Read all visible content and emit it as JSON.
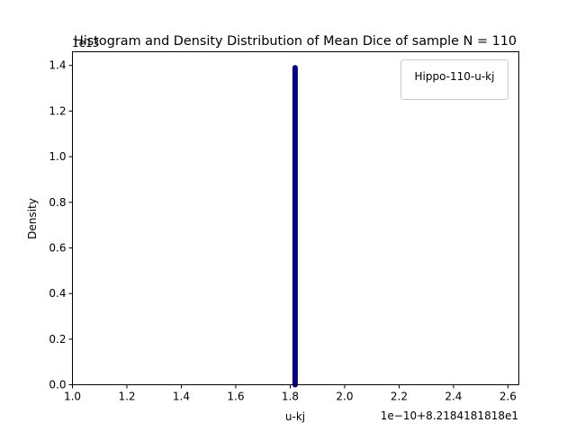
{
  "chart_data": {
    "type": "line",
    "title": "Histogram and Density Distribution of Mean Dice of sample N = 110",
    "xlabel": "u-kj",
    "ylabel": "Density",
    "x_offset_label": "1e−10+8.2184181818e1",
    "y_offset_label": "1e13",
    "xlim": [
      1.0,
      2.64
    ],
    "ylim": [
      0.0,
      1.46
    ],
    "x_ticks": [
      1.0,
      1.2,
      1.4,
      1.6,
      1.8,
      2.0,
      2.2,
      2.4,
      2.6
    ],
    "x_tick_labels": [
      "1.0",
      "1.2",
      "1.4",
      "1.6",
      "1.8",
      "2.0",
      "2.2",
      "2.4",
      "2.6"
    ],
    "y_ticks": [
      0.0,
      0.2,
      0.4,
      0.6,
      0.8,
      1.0,
      1.2,
      1.4
    ],
    "y_tick_labels": [
      "0.0",
      "0.2",
      "0.4",
      "0.6",
      "0.8",
      "1.0",
      "1.2",
      "1.4"
    ],
    "legend": {
      "placement": "top-right",
      "entries": [
        "Hippo-110-u-kj"
      ]
    },
    "grid": false,
    "series": [
      {
        "name": "Hippo-110-u-kj",
        "color": "#00008b",
        "x": [
          1.818,
          1.818
        ],
        "y": [
          0.0,
          1.39
        ]
      }
    ]
  }
}
